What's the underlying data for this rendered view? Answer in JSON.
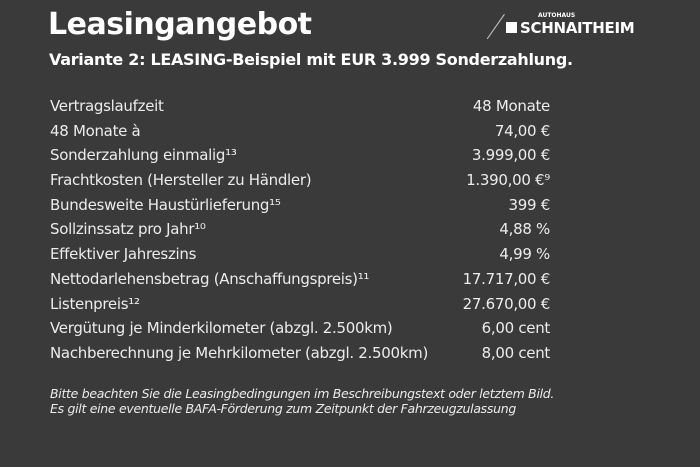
{
  "logo": {
    "small": "AUTOHAUS",
    "big": "SCHNAITHEIM"
  },
  "title": "Leasingangebot",
  "subtitle": "Variante 2: LEASING-Beispiel mit EUR 3.999 Sonderzahlung.",
  "rows": [
    {
      "label": "Vertragslaufzeit",
      "value": "48 Monate"
    },
    {
      "label": "48 Monate à",
      "value": "74,00 €"
    },
    {
      "label": "Sonderzahlung einmalig¹³",
      "value": "3.999,00 €"
    },
    {
      "label": "Frachtkosten (Hersteller zu Händler)",
      "value": "1.390,00 €⁹"
    },
    {
      "label": "Bundesweite Haustürlieferung¹⁵",
      "value": "399 €"
    },
    {
      "label": "Sollzinssatz pro Jahr¹⁰",
      "value": "4,88 %"
    },
    {
      "label": "Effektiver Jahreszins",
      "value": "4,99 %"
    },
    {
      "label": "Nettodarlehensbetrag (Anschaffungspreis)¹¹",
      "value": "17.717,00 €"
    },
    {
      "label": "Listenpreis¹²",
      "value": "27.670,00 €"
    },
    {
      "label": "Vergütung je Minderkilometer (abzgl. 2.500km)",
      "value": "6,00 cent"
    },
    {
      "label": "Nachberechnung je Mehrkilometer (abzgl. 2.500km)",
      "value": "8,00 cent"
    }
  ],
  "note": {
    "line1": "Bitte beachten Sie die Leasingbedingungen im Beschreibungstext oder letztem Bild.",
    "line2": "Es gilt eine eventuelle BAFA-Förderung zum Zeitpunkt der Fahrzeugzulassung"
  }
}
